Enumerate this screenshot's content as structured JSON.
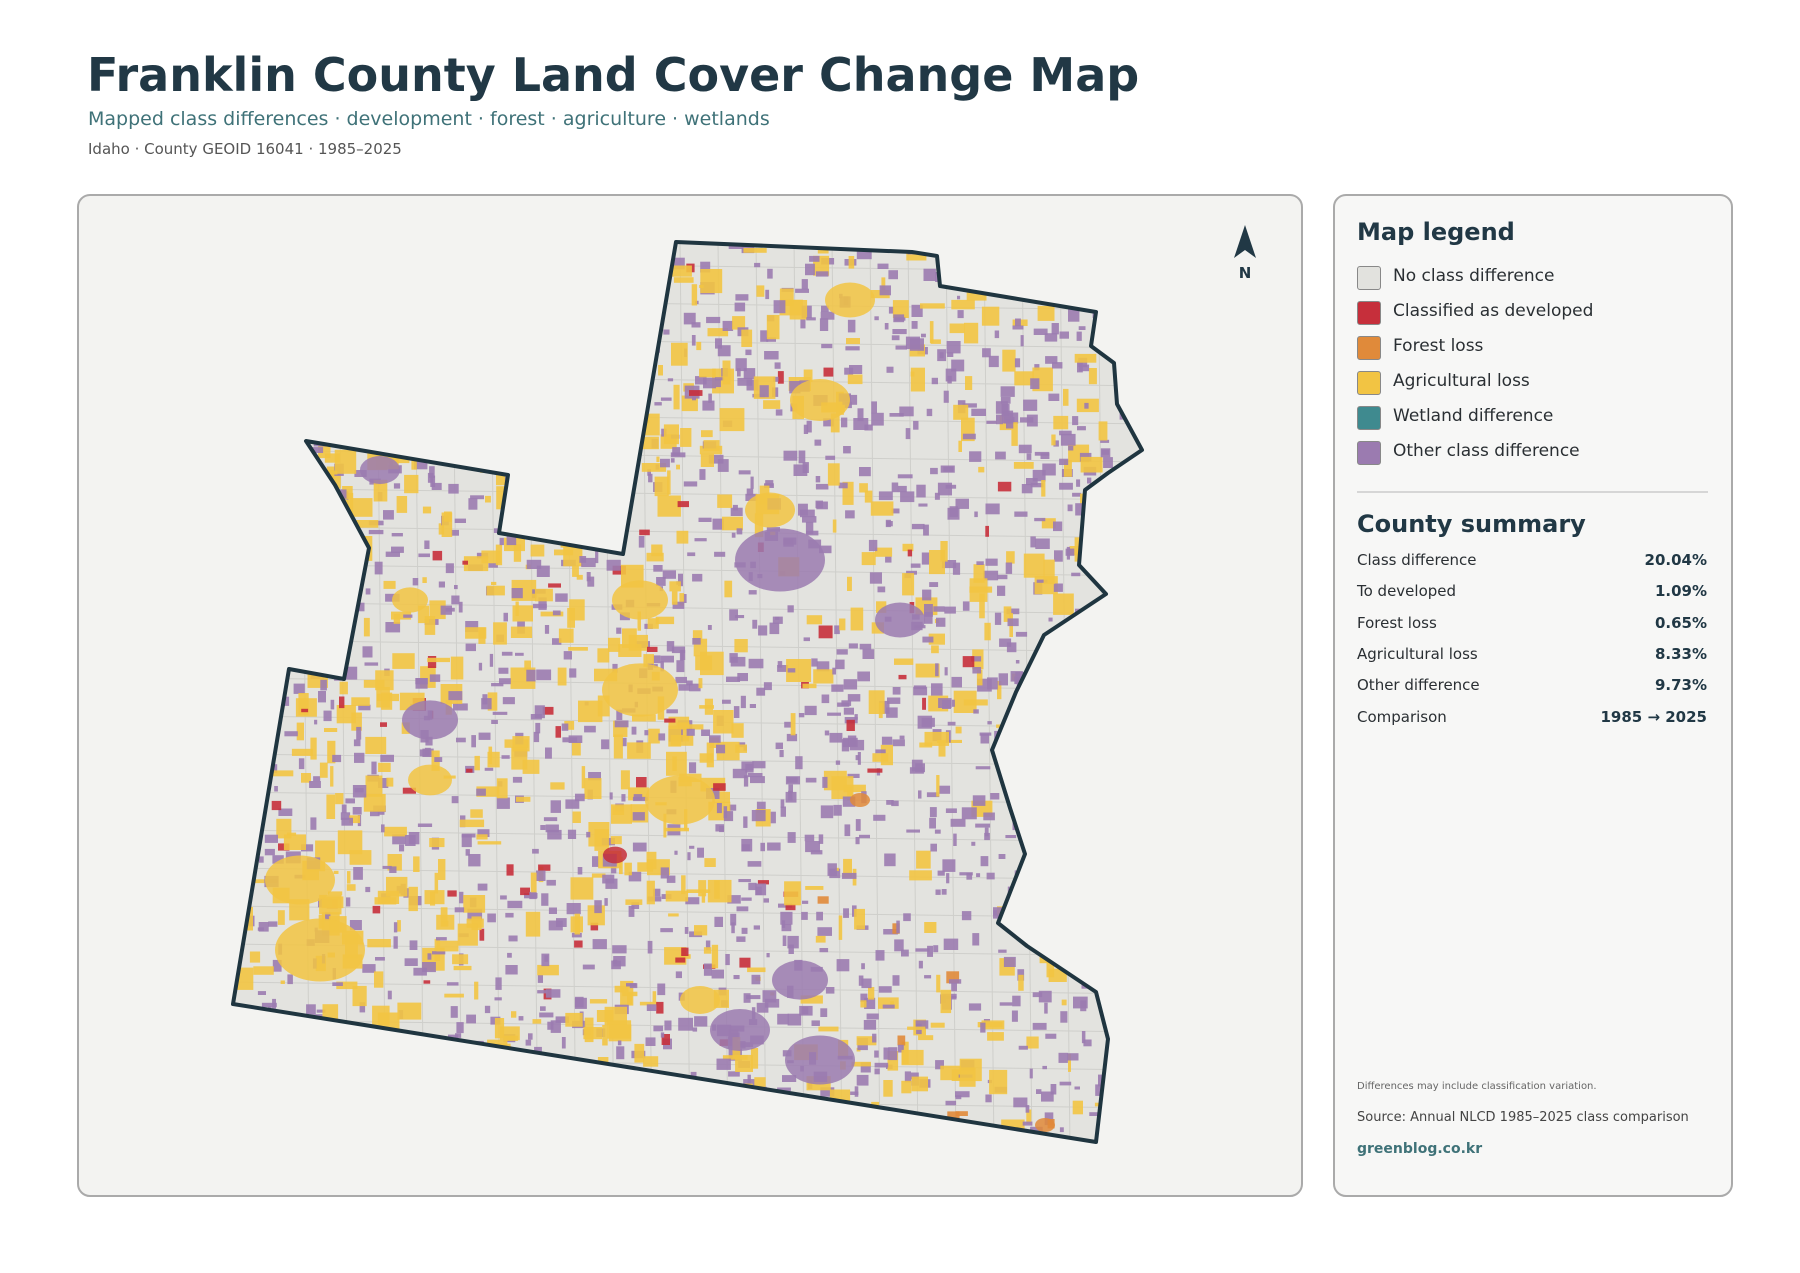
{
  "header": {
    "title": "Franklin County Land Cover Change Map",
    "subtitle": "Mapped class differences · development · forest · agriculture · wetlands",
    "meta": "Idaho · County GEOID 16041 · 1985–2025"
  },
  "map": {
    "north_label": "N"
  },
  "legend": {
    "title": "Map legend",
    "items": [
      {
        "label": "No class difference",
        "color": "#e2e2de"
      },
      {
        "label": "Classified as developed",
        "color": "#c62f3b"
      },
      {
        "label": "Forest loss",
        "color": "#e08a3a"
      },
      {
        "label": "Agricultural loss",
        "color": "#f2c443"
      },
      {
        "label": "Wetland difference",
        "color": "#3f8a8f"
      },
      {
        "label": "Other class difference",
        "color": "#9b7bb0"
      }
    ]
  },
  "summary": {
    "title": "County summary",
    "rows": [
      [
        "Class difference",
        "20.04%"
      ],
      [
        "To developed",
        "1.09%"
      ],
      [
        "Forest loss",
        "0.65%"
      ],
      [
        "Agricultural loss",
        "8.33%"
      ],
      [
        "Other difference",
        "9.73%"
      ],
      [
        "Comparison",
        "1985 → 2025"
      ]
    ]
  },
  "footer": {
    "note": "Differences may include classification variation.",
    "source": "Source: Annual NLCD 1985–2025 class comparison",
    "site": "greenblog.co.kr"
  }
}
